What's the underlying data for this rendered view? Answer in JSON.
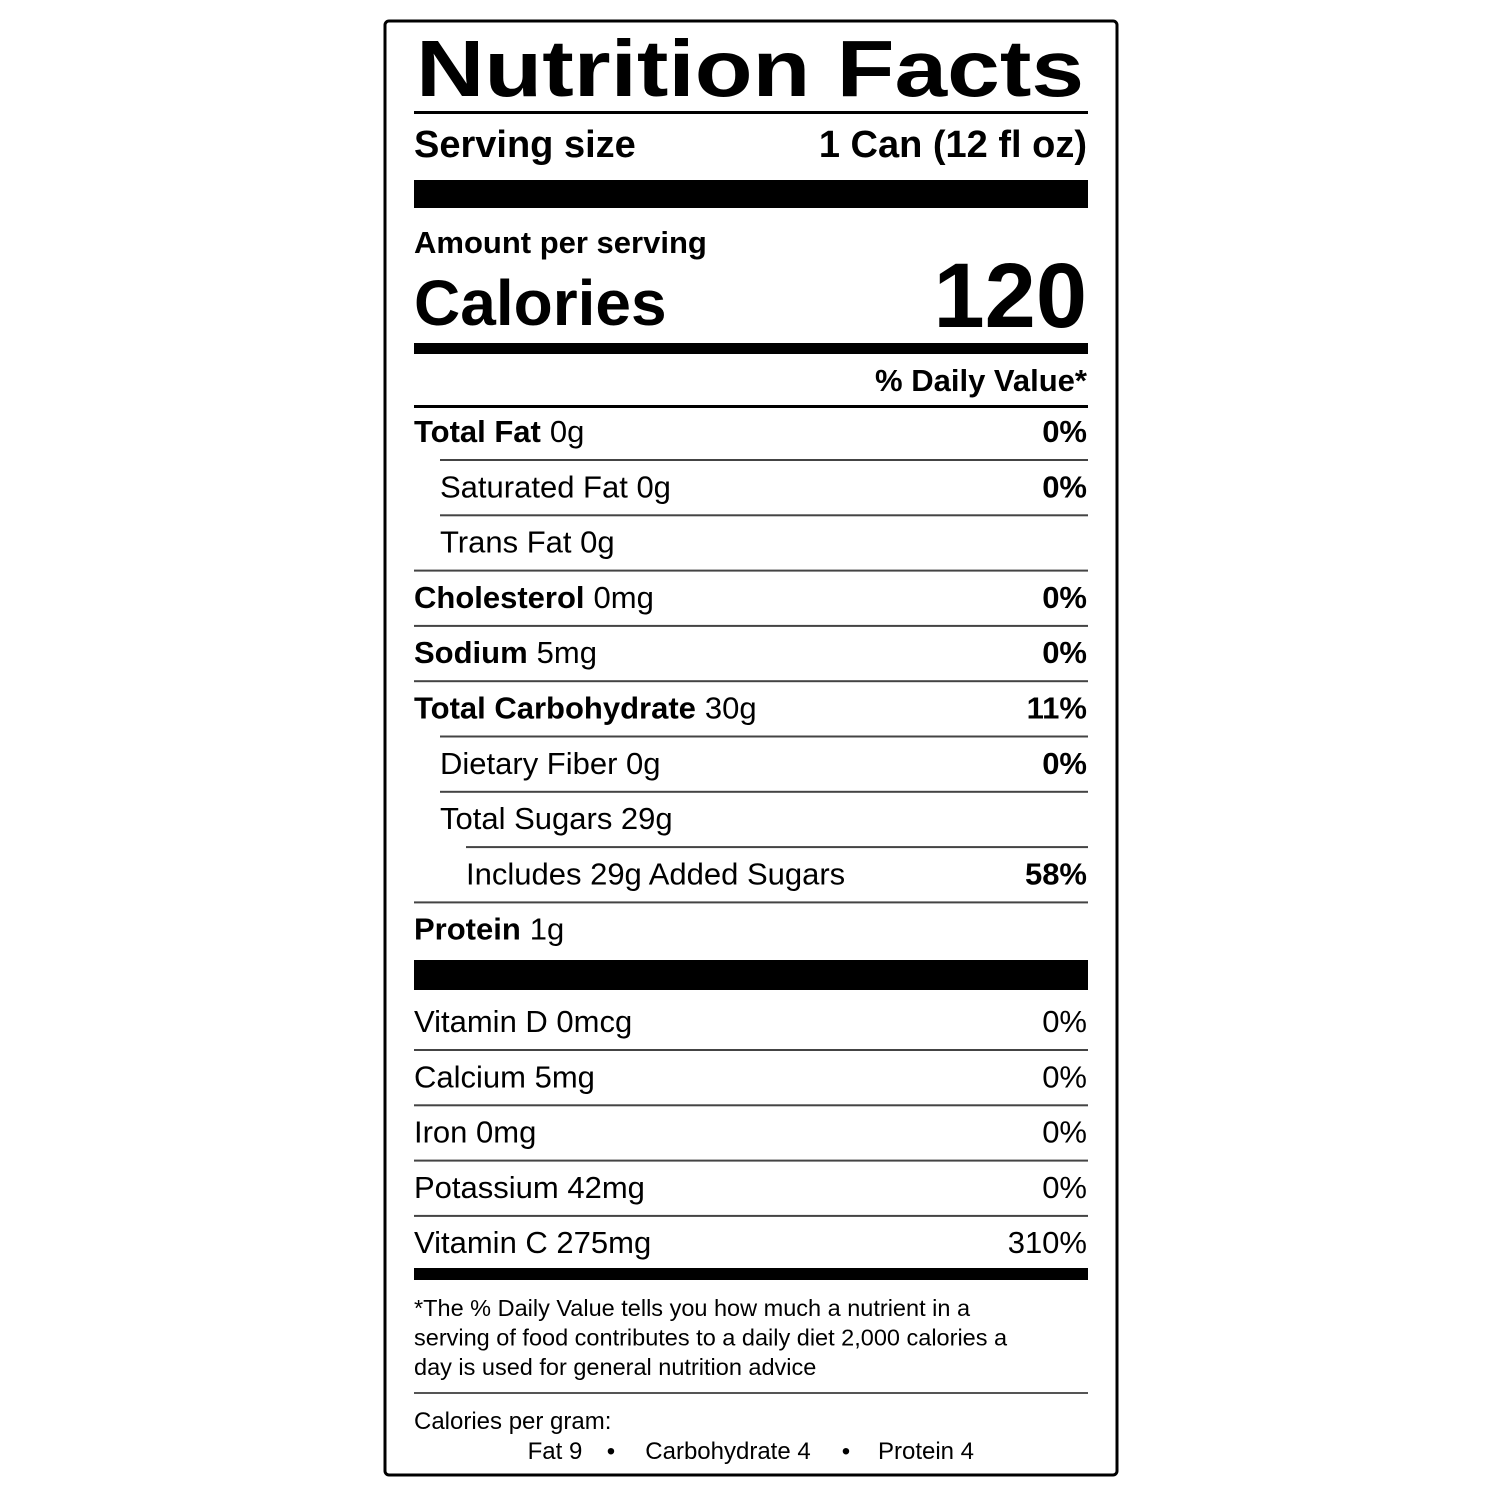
{
  "title": "Nutrition Facts",
  "serving": {
    "label": "Serving size",
    "value": "1 Can (12 fl oz)"
  },
  "amount_per_serving": "Amount per serving",
  "calories": {
    "label": "Calories",
    "value": "120"
  },
  "daily_value_header": "% Daily Value*",
  "nutrients": [
    {
      "name": "Total Fat",
      "amount": "0g",
      "dv": "0%",
      "sub": [
        {
          "label": "Saturated Fat 0g",
          "dv": "0%"
        },
        {
          "label": "Trans Fat 0g"
        }
      ]
    },
    {
      "name": "Cholesterol",
      "amount": "0mg",
      "dv": "0%"
    },
    {
      "name": "Sodium",
      "amount": "5mg",
      "dv": "0%"
    },
    {
      "name": "Total Carbohydrate",
      "amount": "30g",
      "dv": "11%",
      "sub": [
        {
          "label": "Dietary Fiber 0g",
          "dv": "0%"
        },
        {
          "label": "Total Sugars 29g",
          "sub": [
            {
              "label": "Includes 29g Added Sugars",
              "dv": "58%"
            }
          ]
        }
      ]
    },
    {
      "name": "Protein",
      "amount": "1g"
    }
  ],
  "vitamins": [
    {
      "label": "Vitamin D 0mcg",
      "dv": "0%"
    },
    {
      "label": "Calcium 5mg",
      "dv": "0%"
    },
    {
      "label": "Iron 0mg",
      "dv": "0%"
    },
    {
      "label": "Potassium 42mg",
      "dv": "0%"
    },
    {
      "label": "Vitamin C 275mg",
      "dv": "310%"
    }
  ],
  "footnote": [
    "*The % Daily Value tells you how much a nutrient in a",
    "serving of food contributes to a daily diet  2,000 calories a",
    "day is used for general nutrition advice"
  ],
  "calories_per_gram": {
    "label": "Calories per gram:",
    "items": [
      "Fat 9",
      "Carbohydrate 4",
      "Protein 4"
    ]
  }
}
